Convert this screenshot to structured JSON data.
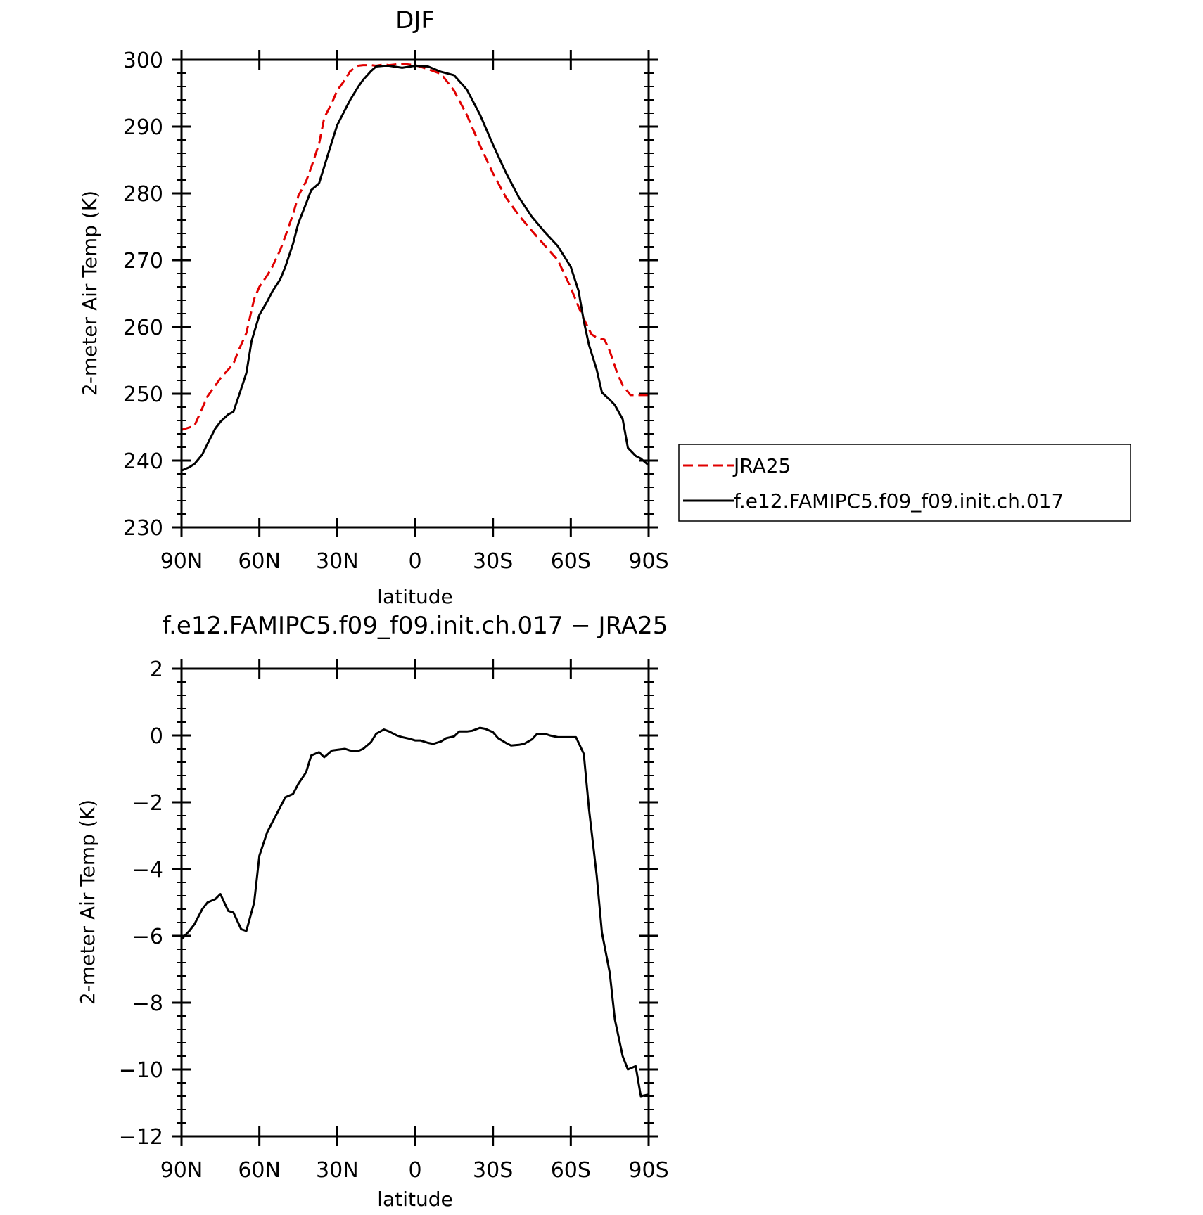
{
  "chart_data": [
    {
      "type": "line",
      "title": "DJF",
      "xlabel": "latitude",
      "ylabel": "2-meter Air Temp (K)",
      "xlim": [
        90,
        -90
      ],
      "ylim": [
        230,
        300
      ],
      "x_ticks": [
        90,
        60,
        30,
        0,
        -30,
        -60,
        -90
      ],
      "x_tick_labels": [
        "90N",
        "60N",
        "30N",
        "0",
        "30S",
        "60S",
        "90S"
      ],
      "y_ticks": [
        230,
        240,
        250,
        260,
        270,
        280,
        290,
        300
      ],
      "y_tick_labels": [
        "230",
        "240",
        "250",
        "260",
        "270",
        "280",
        "290",
        "300"
      ],
      "legend": {
        "placement": "right-outside"
      },
      "series": [
        {
          "name": "JRA25",
          "color": "#e00000",
          "dash": "dashed",
          "x": [
            90,
            85,
            80,
            75,
            70,
            68,
            65,
            62,
            60,
            57,
            55,
            52,
            50,
            47,
            45,
            42,
            40,
            37,
            35,
            32,
            30,
            27,
            25,
            22,
            20,
            17,
            15,
            12,
            10,
            5,
            0,
            -5,
            -10,
            -15,
            -20,
            -25,
            -30,
            -35,
            -40,
            -45,
            -50,
            -55,
            -60,
            -63,
            -65,
            -68,
            -70,
            -73,
            -75,
            -78,
            -80,
            -83,
            -85,
            -87,
            -90
          ],
          "values": [
            244.6,
            245.2,
            249.6,
            252.3,
            254.5,
            256.5,
            259.1,
            264.2,
            266.0,
            267.7,
            269.0,
            271.5,
            273.6,
            276.9,
            279.6,
            281.8,
            283.9,
            287.4,
            291.3,
            293.6,
            295.4,
            297.0,
            298.3,
            299.1,
            299.2,
            299.2,
            299.1,
            299.3,
            299.2,
            299.4,
            299.2,
            298.6,
            297.9,
            295.4,
            291.7,
            287.2,
            283.0,
            279.4,
            276.7,
            274.4,
            272.2,
            270.0,
            265.9,
            263.0,
            261.2,
            258.9,
            258.4,
            258.1,
            256.4,
            253.0,
            251.3,
            249.8,
            249.8,
            249.8,
            249.8
          ]
        },
        {
          "name": "f.e12.FAMIPC5.f09_f09.init.ch.017",
          "color": "#000000",
          "dash": "solid",
          "x": [
            90,
            87,
            85,
            82,
            80,
            77,
            75,
            72,
            70,
            68,
            65,
            63,
            60,
            57,
            55,
            52,
            50,
            47,
            45,
            42,
            40,
            37,
            35,
            32,
            30,
            27,
            25,
            22,
            20,
            17,
            15,
            12,
            10,
            5,
            0,
            -5,
            -10,
            -15,
            -20,
            -25,
            -30,
            -35,
            -40,
            -45,
            -50,
            -55,
            -60,
            -63,
            -65,
            -67,
            -70,
            -72,
            -75,
            -77,
            -80,
            -82,
            -85,
            -87,
            -90
          ],
          "values": [
            238.5,
            239.0,
            239.5,
            240.9,
            242.5,
            244.8,
            245.8,
            246.9,
            247.3,
            249.6,
            253.1,
            257.9,
            261.8,
            263.8,
            265.3,
            267.1,
            269.0,
            272.5,
            275.5,
            278.5,
            280.5,
            281.5,
            284.0,
            287.8,
            290.2,
            292.5,
            294.0,
            295.9,
            297.0,
            298.3,
            299.0,
            299.1,
            299.1,
            298.8,
            299.1,
            299.0,
            298.2,
            297.7,
            295.5,
            291.8,
            287.3,
            283.1,
            279.4,
            276.5,
            274.2,
            272.1,
            269.0,
            265.4,
            260.9,
            257.3,
            253.6,
            250.2,
            249.1,
            248.3,
            246.2,
            241.9,
            240.7,
            240.3,
            239.3
          ]
        }
      ]
    },
    {
      "type": "line",
      "title": "f.e12.FAMIPC5.f09_f09.init.ch.017 − JRA25",
      "xlabel": "latitude",
      "ylabel": "2-meter Air Temp (K)",
      "xlim": [
        90,
        -90
      ],
      "ylim": [
        -12,
        2
      ],
      "x_ticks": [
        90,
        60,
        30,
        0,
        -30,
        -60,
        -90
      ],
      "x_tick_labels": [
        "90N",
        "60N",
        "30N",
        "0",
        "30S",
        "60S",
        "90S"
      ],
      "y_ticks": [
        -12,
        -10,
        -8,
        -6,
        -4,
        -2,
        0,
        2
      ],
      "y_tick_labels": [
        "−12",
        "−10",
        "−8",
        "−6",
        "−4",
        "−2",
        "0",
        "2"
      ],
      "series": [
        {
          "color": "#000000",
          "dash": "solid",
          "x": [
            90,
            87,
            85,
            82,
            80,
            77,
            75,
            72,
            70,
            67,
            65,
            62,
            60,
            57,
            55,
            52,
            50,
            47,
            45,
            42,
            40,
            37,
            35,
            32,
            30,
            27,
            25,
            22,
            20,
            17,
            15,
            12,
            10,
            7,
            5,
            2,
            0,
            -2,
            -5,
            -7,
            -10,
            -12,
            -15,
            -17,
            -20,
            -22,
            -25,
            -27,
            -30,
            -32,
            -35,
            -37,
            -40,
            -42,
            -45,
            -47,
            -50,
            -52,
            -55,
            -57,
            -60,
            -62,
            -65,
            -67,
            -70,
            -72,
            -75,
            -77,
            -80,
            -82,
            -85,
            -87,
            -90
          ],
          "values": [
            -6.1,
            -5.85,
            -5.65,
            -5.2,
            -5.0,
            -4.9,
            -4.75,
            -5.25,
            -5.3,
            -5.8,
            -5.85,
            -5.0,
            -3.6,
            -2.9,
            -2.6,
            -2.15,
            -1.85,
            -1.75,
            -1.45,
            -1.1,
            -0.6,
            -0.5,
            -0.65,
            -0.45,
            -0.43,
            -0.4,
            -0.45,
            -0.47,
            -0.4,
            -0.2,
            0.05,
            0.18,
            0.12,
            0.0,
            -0.05,
            -0.1,
            -0.15,
            -0.15,
            -0.22,
            -0.25,
            -0.18,
            -0.08,
            -0.03,
            0.12,
            0.12,
            0.14,
            0.23,
            0.2,
            0.1,
            -0.08,
            -0.22,
            -0.3,
            -0.28,
            -0.25,
            -0.12,
            0.05,
            0.05,
            0.0,
            -0.05,
            -0.05,
            -0.05,
            -0.05,
            -0.55,
            -2.2,
            -4.2,
            -5.9,
            -7.1,
            -8.5,
            -9.6,
            -10.0,
            -9.9,
            -10.8,
            -10.75
          ]
        }
      ]
    }
  ]
}
